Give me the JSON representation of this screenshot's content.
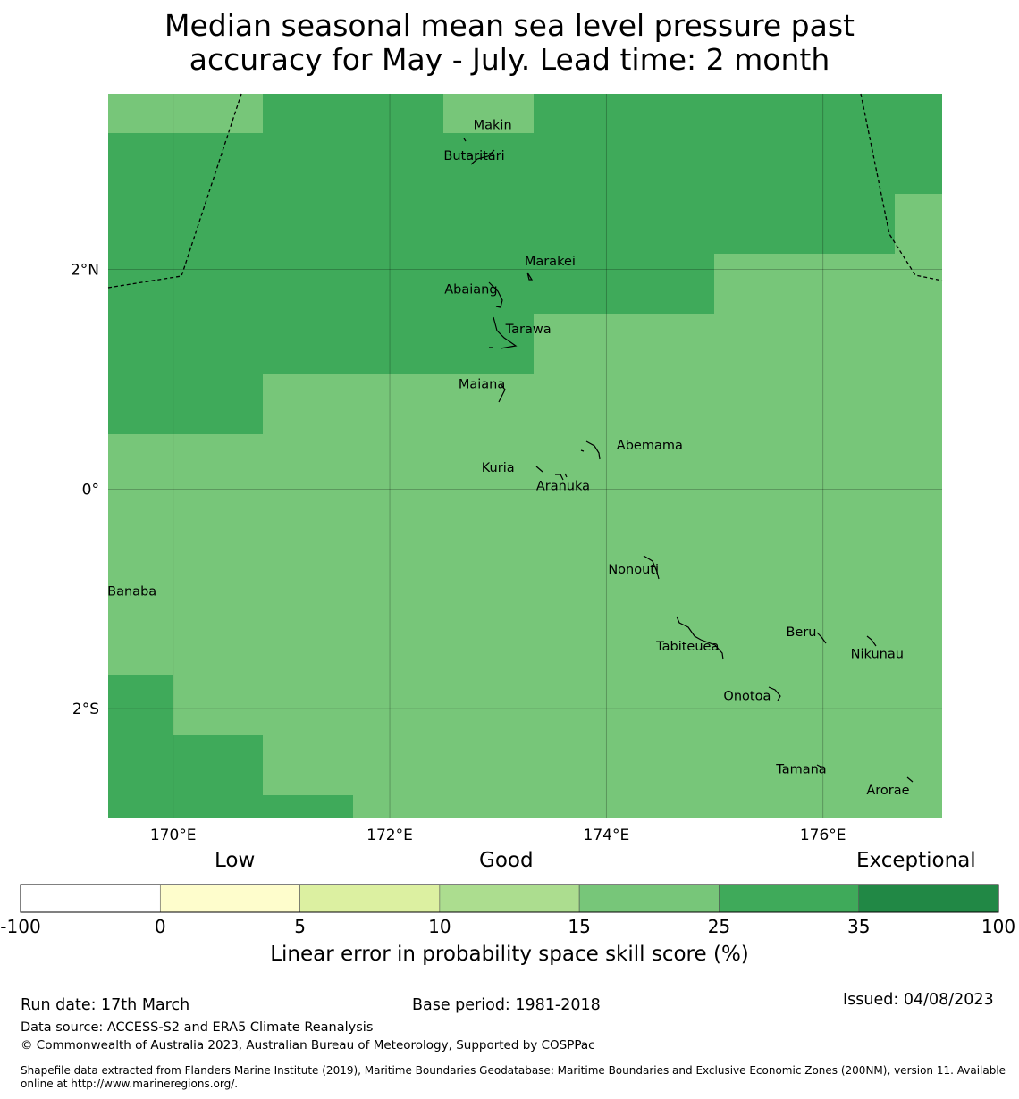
{
  "title_line1": "Median seasonal mean sea level pressure past",
  "title_line2": "accuracy for May - July. Lead time: 2 month",
  "map": {
    "lon_range": [
      169.4,
      177.1
    ],
    "lat_range": [
      -3.0,
      3.6
    ],
    "lon_ticks": [
      {
        "value": 170,
        "label": "170°E"
      },
      {
        "value": 172,
        "label": "172°E"
      },
      {
        "value": 174,
        "label": "174°E"
      },
      {
        "value": 176,
        "label": "176°E"
      }
    ],
    "lat_ticks": [
      {
        "value": 2,
        "label": "2°N"
      },
      {
        "value": 0,
        "label": "0°"
      },
      {
        "value": -2,
        "label": "2°S"
      }
    ],
    "skill_colors": {
      "15-25": "#77c679",
      "25-35": "#3faa5a"
    },
    "places": [
      {
        "name": "Makin",
        "lon": 172.95,
        "lat": 3.32
      },
      {
        "name": "Butaritari",
        "lon": 172.78,
        "lat": 3.04
      },
      {
        "name": "Marakei",
        "lon": 173.48,
        "lat": 2.08
      },
      {
        "name": "Abaiang",
        "lon": 172.75,
        "lat": 1.82
      },
      {
        "name": "Tarawa",
        "lon": 173.28,
        "lat": 1.46
      },
      {
        "name": "Maiana",
        "lon": 172.85,
        "lat": 0.96
      },
      {
        "name": "Abemama",
        "lon": 174.4,
        "lat": 0.4
      },
      {
        "name": "Kuria",
        "lon": 173.0,
        "lat": 0.2
      },
      {
        "name": "Aranuka",
        "lon": 173.6,
        "lat": 0.03
      },
      {
        "name": "Nonouti",
        "lon": 174.25,
        "lat": -0.73
      },
      {
        "name": "Banaba",
        "lon": 169.62,
        "lat": -0.93
      },
      {
        "name": "Beru",
        "lon": 175.8,
        "lat": -1.3
      },
      {
        "name": "Tabiteuea",
        "lon": 174.75,
        "lat": -1.43
      },
      {
        "name": "Nikunau",
        "lon": 176.5,
        "lat": -1.5
      },
      {
        "name": "Onotoa",
        "lon": 175.3,
        "lat": -1.88
      },
      {
        "name": "Tamana",
        "lon": 175.8,
        "lat": -2.55
      },
      {
        "name": "Arorae",
        "lon": 176.6,
        "lat": -2.74
      }
    ]
  },
  "colorbar": {
    "categories": [
      {
        "label": "Low"
      },
      {
        "label": "Good"
      },
      {
        "label": "Exceptional"
      }
    ],
    "ticks": [
      "-100",
      "0",
      "5",
      "10",
      "15",
      "25",
      "35",
      "100"
    ],
    "colors": [
      "#ffffff",
      "#fefdcc",
      "#dcf0a1",
      "#acdd8f",
      "#77c679",
      "#3faa5a",
      "#218845"
    ],
    "label": "Linear error in probability space skill score (%)"
  },
  "footer": {
    "run_date": "Run date: 17th March",
    "base_period": "Base period: 1981-2018",
    "issued": "Issued: 04/08/2023",
    "data_source": "Data source: ACCESS-S2 and ERA5 Climate Reanalysis",
    "copyright": "© Commonwealth of Australia 2023, Australian Bureau of Meteorology, Supported by COSPPac",
    "shapefile_1": "Shapefile data extracted from Flanders Marine Institute (2019), Maritime Boundaries Geodatabase: Maritime Boundaries and Exclusive Economic Zones (200NM), version 11. Available",
    "shapefile_2": "online at http://www.marineregions.org/."
  }
}
